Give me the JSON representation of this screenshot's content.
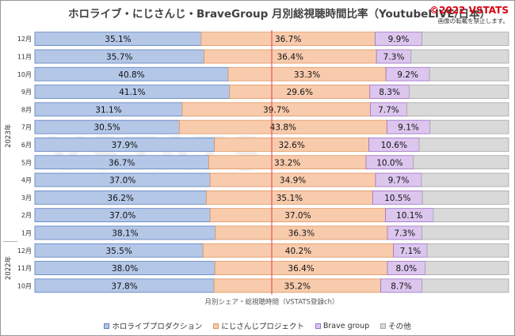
{
  "header": {
    "title": "ホロライブ・にじさんじ・BraveGroup 月別総視聴時間比率（YoutubeLIVE/日本）",
    "copyright": "©2022 VSTATS",
    "note": "画像の転載を禁止します。",
    "watermark": "VSTATS"
  },
  "colors": {
    "hololive": "#b4c7e7",
    "nijisanji": "#f8cbad",
    "brave": "#dcc6ee",
    "other": "#d9d9d9",
    "hololive_edge": "#5b7fbf",
    "nijisanji_edge": "#e0955e",
    "brave_edge": "#9d6fc2",
    "median": "#e04040"
  },
  "chart_data": {
    "type": "bar",
    "orientation": "horizontal",
    "stacked": true,
    "normalized": true,
    "xlim": [
      0,
      100
    ],
    "xlabel": "月別シェア・総視聴時間（VSTATS登録ch）",
    "categories": [
      "12月",
      "11月",
      "10月",
      "9月",
      "8月",
      "7月",
      "6月",
      "5月",
      "4月",
      "3月",
      "2月",
      "1月",
      "12月",
      "11月",
      "10月"
    ],
    "year_groups": [
      {
        "label": "2023年",
        "from": 0,
        "to": 11
      },
      {
        "label": "2022年",
        "from": 12,
        "to": 14
      }
    ],
    "reference_line": 50,
    "series": [
      {
        "name": "ホロライブプロダクション",
        "key": "hololive",
        "values": [
          35.1,
          35.7,
          40.8,
          41.1,
          31.1,
          30.5,
          37.9,
          36.7,
          37.0,
          36.2,
          37.0,
          38.1,
          35.5,
          38.0,
          37.8
        ]
      },
      {
        "name": "にじさんじプロジェクト",
        "key": "nijisanji",
        "values": [
          36.7,
          36.4,
          33.3,
          29.6,
          39.7,
          43.8,
          32.6,
          33.2,
          34.9,
          35.1,
          37.0,
          36.3,
          40.2,
          36.4,
          35.2
        ]
      },
      {
        "name": "Brave group",
        "key": "brave",
        "values": [
          9.9,
          7.3,
          9.2,
          8.3,
          7.7,
          9.1,
          10.6,
          10.0,
          9.7,
          10.5,
          10.1,
          7.3,
          7.1,
          8.0,
          8.7
        ]
      },
      {
        "name": "その他",
        "key": "other",
        "values": [
          18.3,
          20.6,
          16.7,
          21.0,
          21.5,
          16.6,
          18.9,
          20.1,
          18.4,
          18.2,
          15.9,
          18.3,
          17.2,
          17.6,
          18.3
        ]
      }
    ],
    "labeled_series": [
      "hololive",
      "nijisanji",
      "brave"
    ],
    "value_format": "0.0%",
    "legend_position": "bottom"
  }
}
